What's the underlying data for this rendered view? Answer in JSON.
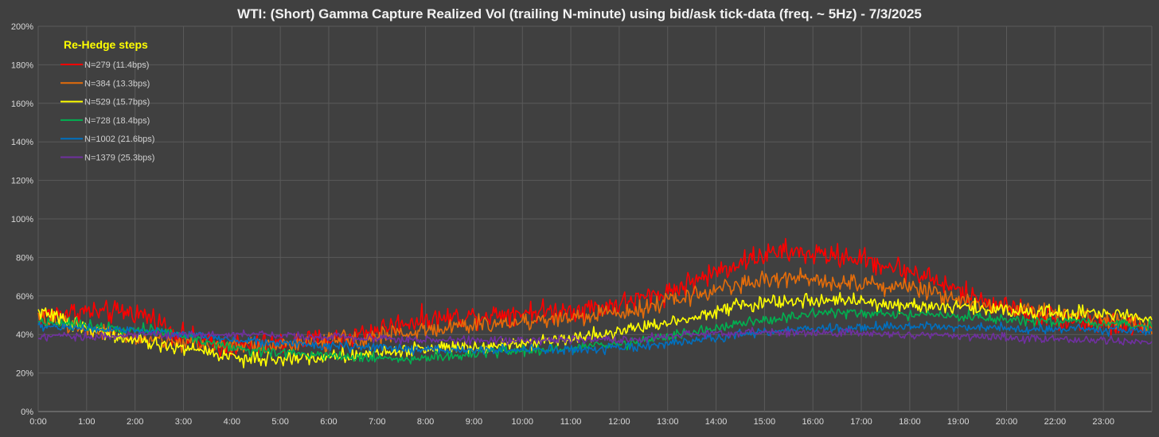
{
  "chart_data": {
    "type": "line",
    "title": "WTI: (Short) Gamma Capture Realized Vol (trailing N-minute) using bid/ask tick-data (freq. ~ 5Hz) - 7/3/2025",
    "xlabel": "",
    "ylabel": "",
    "x_tick_labels": [
      "0:00",
      "1:00",
      "2:00",
      "3:00",
      "4:00",
      "5:00",
      "6:00",
      "7:00",
      "8:00",
      "9:00",
      "10:00",
      "11:00",
      "12:00",
      "13:00",
      "14:00",
      "15:00",
      "16:00",
      "17:00",
      "18:00",
      "19:00",
      "20:00",
      "22:00",
      "23:00"
    ],
    "y_tick_labels": [
      "0%",
      "20%",
      "40%",
      "60%",
      "80%",
      "100%",
      "120%",
      "140%",
      "160%",
      "180%",
      "200%"
    ],
    "ylim": [
      0,
      200
    ],
    "xlim": [
      0,
      23.9
    ],
    "grid": true,
    "legend": {
      "title": "Re-Hedge steps",
      "position": "top-left"
    },
    "x": [
      0,
      0.5,
      1,
      1.5,
      2,
      2.5,
      3,
      3.5,
      4,
      4.5,
      5,
      5.5,
      6,
      6.5,
      7,
      7.5,
      8,
      8.5,
      9,
      9.5,
      10,
      10.5,
      11,
      11.5,
      12,
      12.5,
      13,
      13.5,
      14,
      14.5,
      15,
      15.5,
      16,
      16.5,
      17,
      17.5,
      18,
      18.5,
      19,
      19.5,
      20,
      20.5,
      21,
      21.5,
      22,
      22.5,
      23,
      23.5,
      23.9
    ],
    "series": [
      {
        "name": "N=279 (11.4bps)",
        "color": "#ff0000",
        "values": [
          50,
          51,
          52,
          51,
          52,
          48,
          40,
          36,
          34,
          34,
          35,
          36,
          37,
          38,
          41,
          44,
          47,
          48,
          49,
          50,
          51,
          52,
          52,
          53,
          54,
          56,
          59,
          62,
          67,
          72,
          77,
          81,
          83,
          82,
          81,
          80,
          77,
          74,
          71,
          65,
          60,
          56,
          53,
          50,
          48,
          46,
          45,
          44,
          43
        ]
      },
      {
        "name": "N=384 (13.3bps)",
        "color": "#e46c0a",
        "values": [
          48,
          46,
          44,
          41,
          38,
          37,
          36,
          35,
          34,
          34,
          35,
          35,
          36,
          37,
          38,
          40,
          41,
          43,
          44,
          45,
          46,
          47,
          48,
          49,
          50,
          52,
          54,
          57,
          60,
          63,
          66,
          68,
          69,
          69,
          68,
          67,
          66,
          65,
          63,
          60,
          57,
          55,
          53,
          52,
          51,
          50,
          48,
          46,
          44
        ]
      },
      {
        "name": "N=529 (15.7bps)",
        "color": "#ffff00",
        "values": [
          52,
          48,
          44,
          40,
          37,
          35,
          33,
          32,
          29,
          27,
          27,
          28,
          28,
          29,
          30,
          31,
          32,
          33,
          34,
          34,
          35,
          36,
          37,
          38,
          40,
          42,
          44,
          46,
          49,
          52,
          55,
          56,
          57,
          58,
          58,
          57,
          56,
          55,
          55,
          54,
          54,
          53,
          52,
          52,
          51,
          51,
          50,
          50,
          50
        ]
      },
      {
        "name": "N=728 (18.4bps)",
        "color": "#00b050",
        "values": [
          47,
          46,
          45,
          44,
          43,
          42,
          40,
          37,
          34,
          32,
          31,
          30,
          30,
          29,
          28,
          28,
          27,
          28,
          29,
          30,
          31,
          32,
          32,
          33,
          34,
          35,
          37,
          39,
          41,
          43,
          45,
          47,
          49,
          50,
          51,
          51,
          51,
          50,
          50,
          49,
          49,
          48,
          47,
          47,
          46,
          46,
          45,
          45,
          45
        ]
      },
      {
        "name": "N=1002 (21.6bps)",
        "color": "#0070c0",
        "values": [
          44,
          44,
          43,
          43,
          42,
          41,
          40,
          39,
          38,
          37,
          36,
          35,
          34,
          34,
          33,
          33,
          32,
          32,
          32,
          32,
          32,
          32,
          32,
          32,
          32,
          33,
          34,
          35,
          36,
          38,
          40,
          41,
          42,
          43,
          43,
          43,
          44,
          44,
          44,
          44,
          44,
          44,
          43,
          43,
          43,
          43,
          42,
          42,
          42
        ]
      },
      {
        "name": "N=1379 (25.3bps)",
        "color": "#7030a0",
        "values": [
          38,
          39,
          39,
          39,
          40,
          40,
          40,
          40,
          40,
          40,
          40,
          39,
          39,
          39,
          38,
          38,
          37,
          37,
          37,
          37,
          37,
          37,
          37,
          37,
          37,
          37,
          38,
          39,
          40,
          40,
          41,
          41,
          41,
          41,
          41,
          41,
          40,
          40,
          40,
          40,
          39,
          39,
          38,
          38,
          38,
          37,
          37,
          36,
          36
        ]
      }
    ]
  }
}
